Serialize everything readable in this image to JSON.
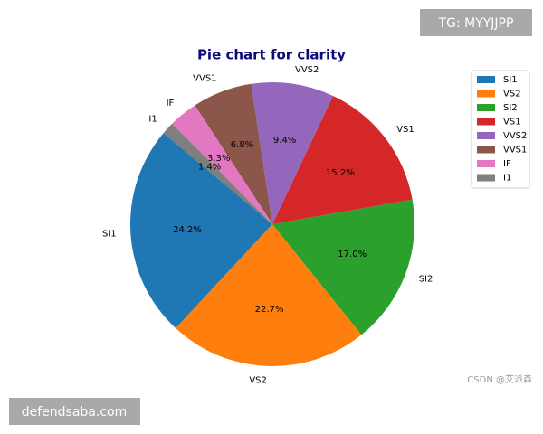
{
  "chart_data": {
    "type": "pie",
    "title": "Pie chart for clarity",
    "categories": [
      "SI1",
      "VS2",
      "SI2",
      "VS1",
      "VVS2",
      "VVS1",
      "IF",
      "I1"
    ],
    "values": [
      24.2,
      22.7,
      17.0,
      15.2,
      9.4,
      6.8,
      3.3,
      1.4
    ],
    "value_labels": [
      "24.2%",
      "22.7%",
      "17.0%",
      "15.2%",
      "9.4%",
      "6.8%",
      "3.3%",
      "1.4%"
    ],
    "colors": [
      "#1f77b4",
      "#ff7f0e",
      "#2ca02c",
      "#d62728",
      "#9467bd",
      "#8c564b",
      "#e377c2",
      "#7f7f7f"
    ],
    "legend": "upper right"
  },
  "watermarks": {
    "top": "TG: MYYJJPP",
    "bottom": "defendsaba.com",
    "credit": "CSDN @艾派森"
  }
}
